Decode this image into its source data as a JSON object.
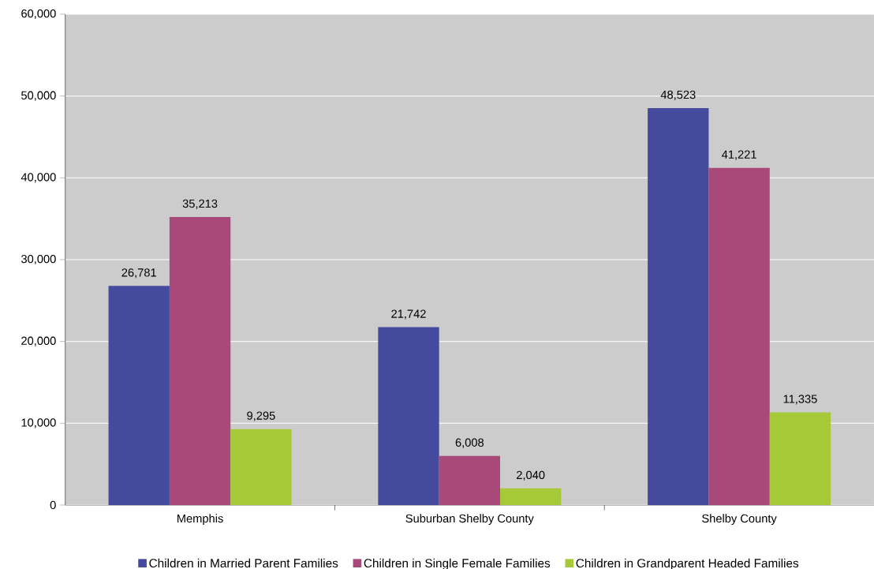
{
  "chart_data": {
    "type": "bar",
    "categories": [
      "Memphis",
      "Suburban Shelby County",
      "Shelby County"
    ],
    "series": [
      {
        "name": "Children in Married Parent Families",
        "color": "#464a9e",
        "values": [
          26781,
          21742,
          48523
        ],
        "value_labels": [
          "26,781",
          "21,742",
          "48,523"
        ]
      },
      {
        "name": "Children in Single Female Families",
        "color": "#a8497a",
        "values": [
          35213,
          6008,
          41221
        ],
        "value_labels": [
          "35,213",
          "6,008",
          "41,221"
        ]
      },
      {
        "name": "Children in Grandparent Headed Families",
        "color": "#a6c93a",
        "values": [
          9295,
          2040,
          11335
        ],
        "value_labels": [
          "9,295",
          "2,040",
          "11,335"
        ]
      }
    ],
    "ylim": [
      0,
      60000
    ],
    "yticks": [
      {
        "value": 0,
        "label": "0"
      },
      {
        "value": 10000,
        "label": "10,000"
      },
      {
        "value": 20000,
        "label": "20,000"
      },
      {
        "value": 30000,
        "label": "30,000"
      },
      {
        "value": 40000,
        "label": "40,000"
      },
      {
        "value": 50000,
        "label": "50,000"
      },
      {
        "value": 60000,
        "label": "60,000"
      }
    ],
    "grid": "y",
    "legend": "bottom"
  }
}
